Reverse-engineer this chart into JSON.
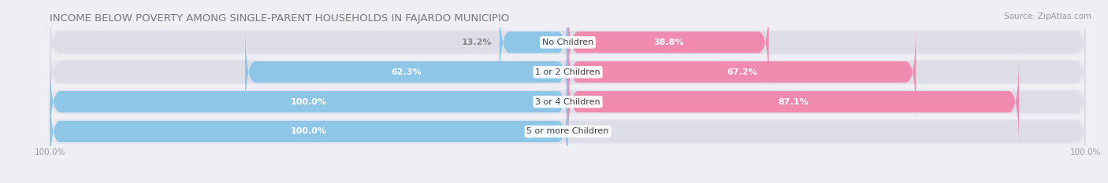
{
  "title": "INCOME BELOW POVERTY AMONG SINGLE-PARENT HOUSEHOLDS IN FAJARDO MUNICIPIO",
  "source": "Source: ZipAtlas.com",
  "categories": [
    "No Children",
    "1 or 2 Children",
    "3 or 4 Children",
    "5 or more Children"
  ],
  "single_father": [
    13.2,
    62.3,
    100.0,
    100.0
  ],
  "single_mother": [
    38.8,
    67.2,
    87.1,
    0.0
  ],
  "max_val": 100.0,
  "bar_height": 0.72,
  "father_color": "#8EC6E8",
  "mother_color": "#F08AAE",
  "bg_color": "#EEEEF4",
  "bar_bg_color": "#DDDDE8",
  "row_bg_color": "#E4E4EE",
  "title_fontsize": 9.5,
  "label_fontsize": 8,
  "category_fontsize": 8,
  "axis_label_fontsize": 7.5,
  "legend_fontsize": 8,
  "source_fontsize": 7.5
}
